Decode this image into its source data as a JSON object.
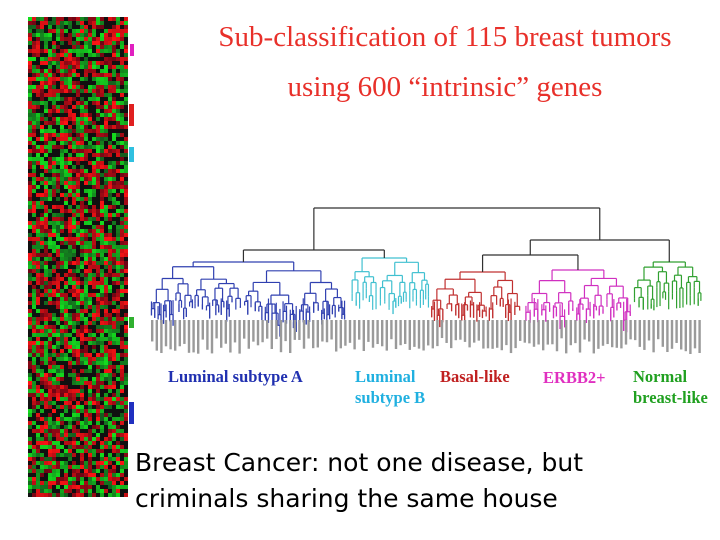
{
  "title": {
    "line1": "Sub-classification of 115 breast tumors",
    "line2": "using 600 “intrinsic” genes"
  },
  "subtypes": [
    {
      "lines": [
        "Luminal subtype A"
      ]
    },
    {
      "lines": [
        "Luminal",
        "subtype B"
      ]
    },
    {
      "lines": [
        "Basal-like"
      ]
    },
    {
      "lines": [
        "ERBB2+"
      ]
    },
    {
      "lines": [
        "Normal",
        "breast-like"
      ]
    }
  ],
  "caption": {
    "lines": [
      "Breast Cancer: not one disease, but",
      "criminals sharing the same house"
    ]
  }
}
